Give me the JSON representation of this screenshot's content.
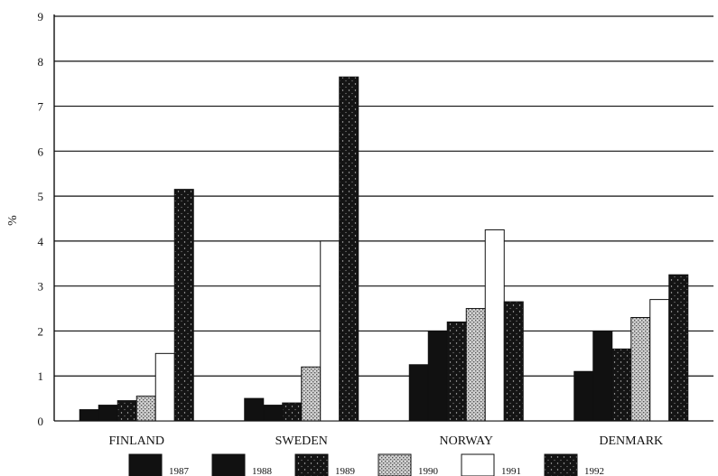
{
  "chart_data": {
    "type": "bar",
    "title": "",
    "xlabel": "",
    "ylabel": "%",
    "ylim": [
      0,
      9
    ],
    "yticks": [
      "0",
      "1",
      "2",
      "3",
      "4",
      "5",
      "6",
      "7",
      "8",
      "9"
    ],
    "grid": true,
    "legend_position": "bottom",
    "categories": [
      "FINLAND",
      "SWEDEN",
      "NORWAY",
      "DENMARK"
    ],
    "series": [
      {
        "name": "1987",
        "values": [
          0.25,
          0.5,
          1.25,
          1.1
        ],
        "style": "solid",
        "color": "#111111"
      },
      {
        "name": "1988",
        "values": [
          0.35,
          0.35,
          2.0,
          2.0
        ],
        "style": "solid",
        "color": "#111111"
      },
      {
        "name": "1989",
        "values": [
          0.45,
          0.4,
          2.2,
          1.6
        ],
        "style": "speckled-dark",
        "color": "#151515"
      },
      {
        "name": "1990",
        "values": [
          0.55,
          1.2,
          2.5,
          2.3
        ],
        "style": "stipple-gray",
        "color": "#9a9a9a"
      },
      {
        "name": "1991",
        "values": [
          1.5,
          4.0,
          4.25,
          2.7
        ],
        "style": "white",
        "color": "#ffffff"
      },
      {
        "name": "1992",
        "values": [
          5.15,
          7.65,
          2.65,
          3.25
        ],
        "style": "speckled-dark",
        "color": "#151515"
      }
    ]
  }
}
